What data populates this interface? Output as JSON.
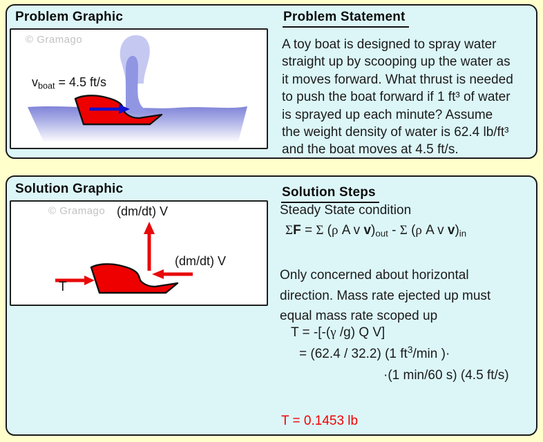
{
  "colors": {
    "page_bg": "#FFFFCC",
    "panel_bg": "#DCF6F8",
    "panel_border": "#1A1A1A",
    "box_bg": "#FFFFFF",
    "text": "#1B1B1B",
    "watermark_gray": "#C2C2C2",
    "boat_red": "#EE0000",
    "arrow_red": "#E80A0A",
    "velocity_blue": "#1111CC",
    "result_red": "#F40000",
    "water_top_blue": "#8084D8",
    "spray_light": "#C5C9F1",
    "spray_dark": "#9096E2"
  },
  "problem": {
    "graphic_title": "Problem Graphic",
    "statement_title": "Problem Statement",
    "watermark": "© Gramago",
    "boat_speed_label": [
      {
        "t": "v"
      },
      {
        "t": "boat",
        "sub": true
      },
      {
        "t": " = 4.5 ft/s"
      }
    ],
    "statement_lines": [
      "A toy boat is designed to spray water",
      "straight up by scooping up the water as",
      "it moves forward. What thrust is needed",
      "to push the boat forward if 1 ft³ of water",
      "is sprayed up each minute? Assume",
      "the weight density of water is 62.4 lb/ft³",
      "and the boat moves at 4.5 ft/s."
    ]
  },
  "solution": {
    "graphic_title": "Solution Graphic",
    "steps_title": "Solution Steps",
    "watermark": "© Gramago",
    "thrust_label": "T",
    "ejected_momentum_label": "(dm/dt) V",
    "scooped_momentum_label": "(dm/dt) V",
    "steps": {
      "steady": "Steady State condition",
      "momentum_eq": [
        {
          "t": "Σ",
          "g": true
        },
        {
          "t": "F",
          "b": true
        },
        {
          "t": " = "
        },
        {
          "t": "Σ",
          "g": true
        },
        {
          "t": " ("
        },
        {
          "t": "ρ",
          "g": true
        },
        {
          "t": " A v "
        },
        {
          "t": "v",
          "b": true
        },
        {
          "t": ")"
        },
        {
          "t": "out",
          "sub": true
        },
        {
          "t": " - "
        },
        {
          "t": "Σ",
          "g": true
        },
        {
          "t": " ("
        },
        {
          "t": "ρ",
          "g": true
        },
        {
          "t": " A v "
        },
        {
          "t": "v",
          "b": true
        },
        {
          "t": ")"
        },
        {
          "t": "in",
          "sub": true
        }
      ],
      "discussion_lines": [
        "Only concerned about horizontal",
        "direction. Mass rate ejected up must",
        "equal mass rate scoped up"
      ],
      "thrust_eq1": [
        {
          "t": "T = -[-("
        },
        {
          "t": "γ",
          "g": true
        },
        {
          "t": " /g) Q V]"
        }
      ],
      "thrust_eq2": [
        {
          "t": "= (62.4 / 32.2) (1 ft"
        },
        {
          "t": "3",
          "sup": true
        },
        {
          "t": "/min )·"
        }
      ],
      "thrust_eq3": "·(1 min/60 s) (4.5 ft/s)",
      "result": "T = 0.1453 lb"
    }
  }
}
